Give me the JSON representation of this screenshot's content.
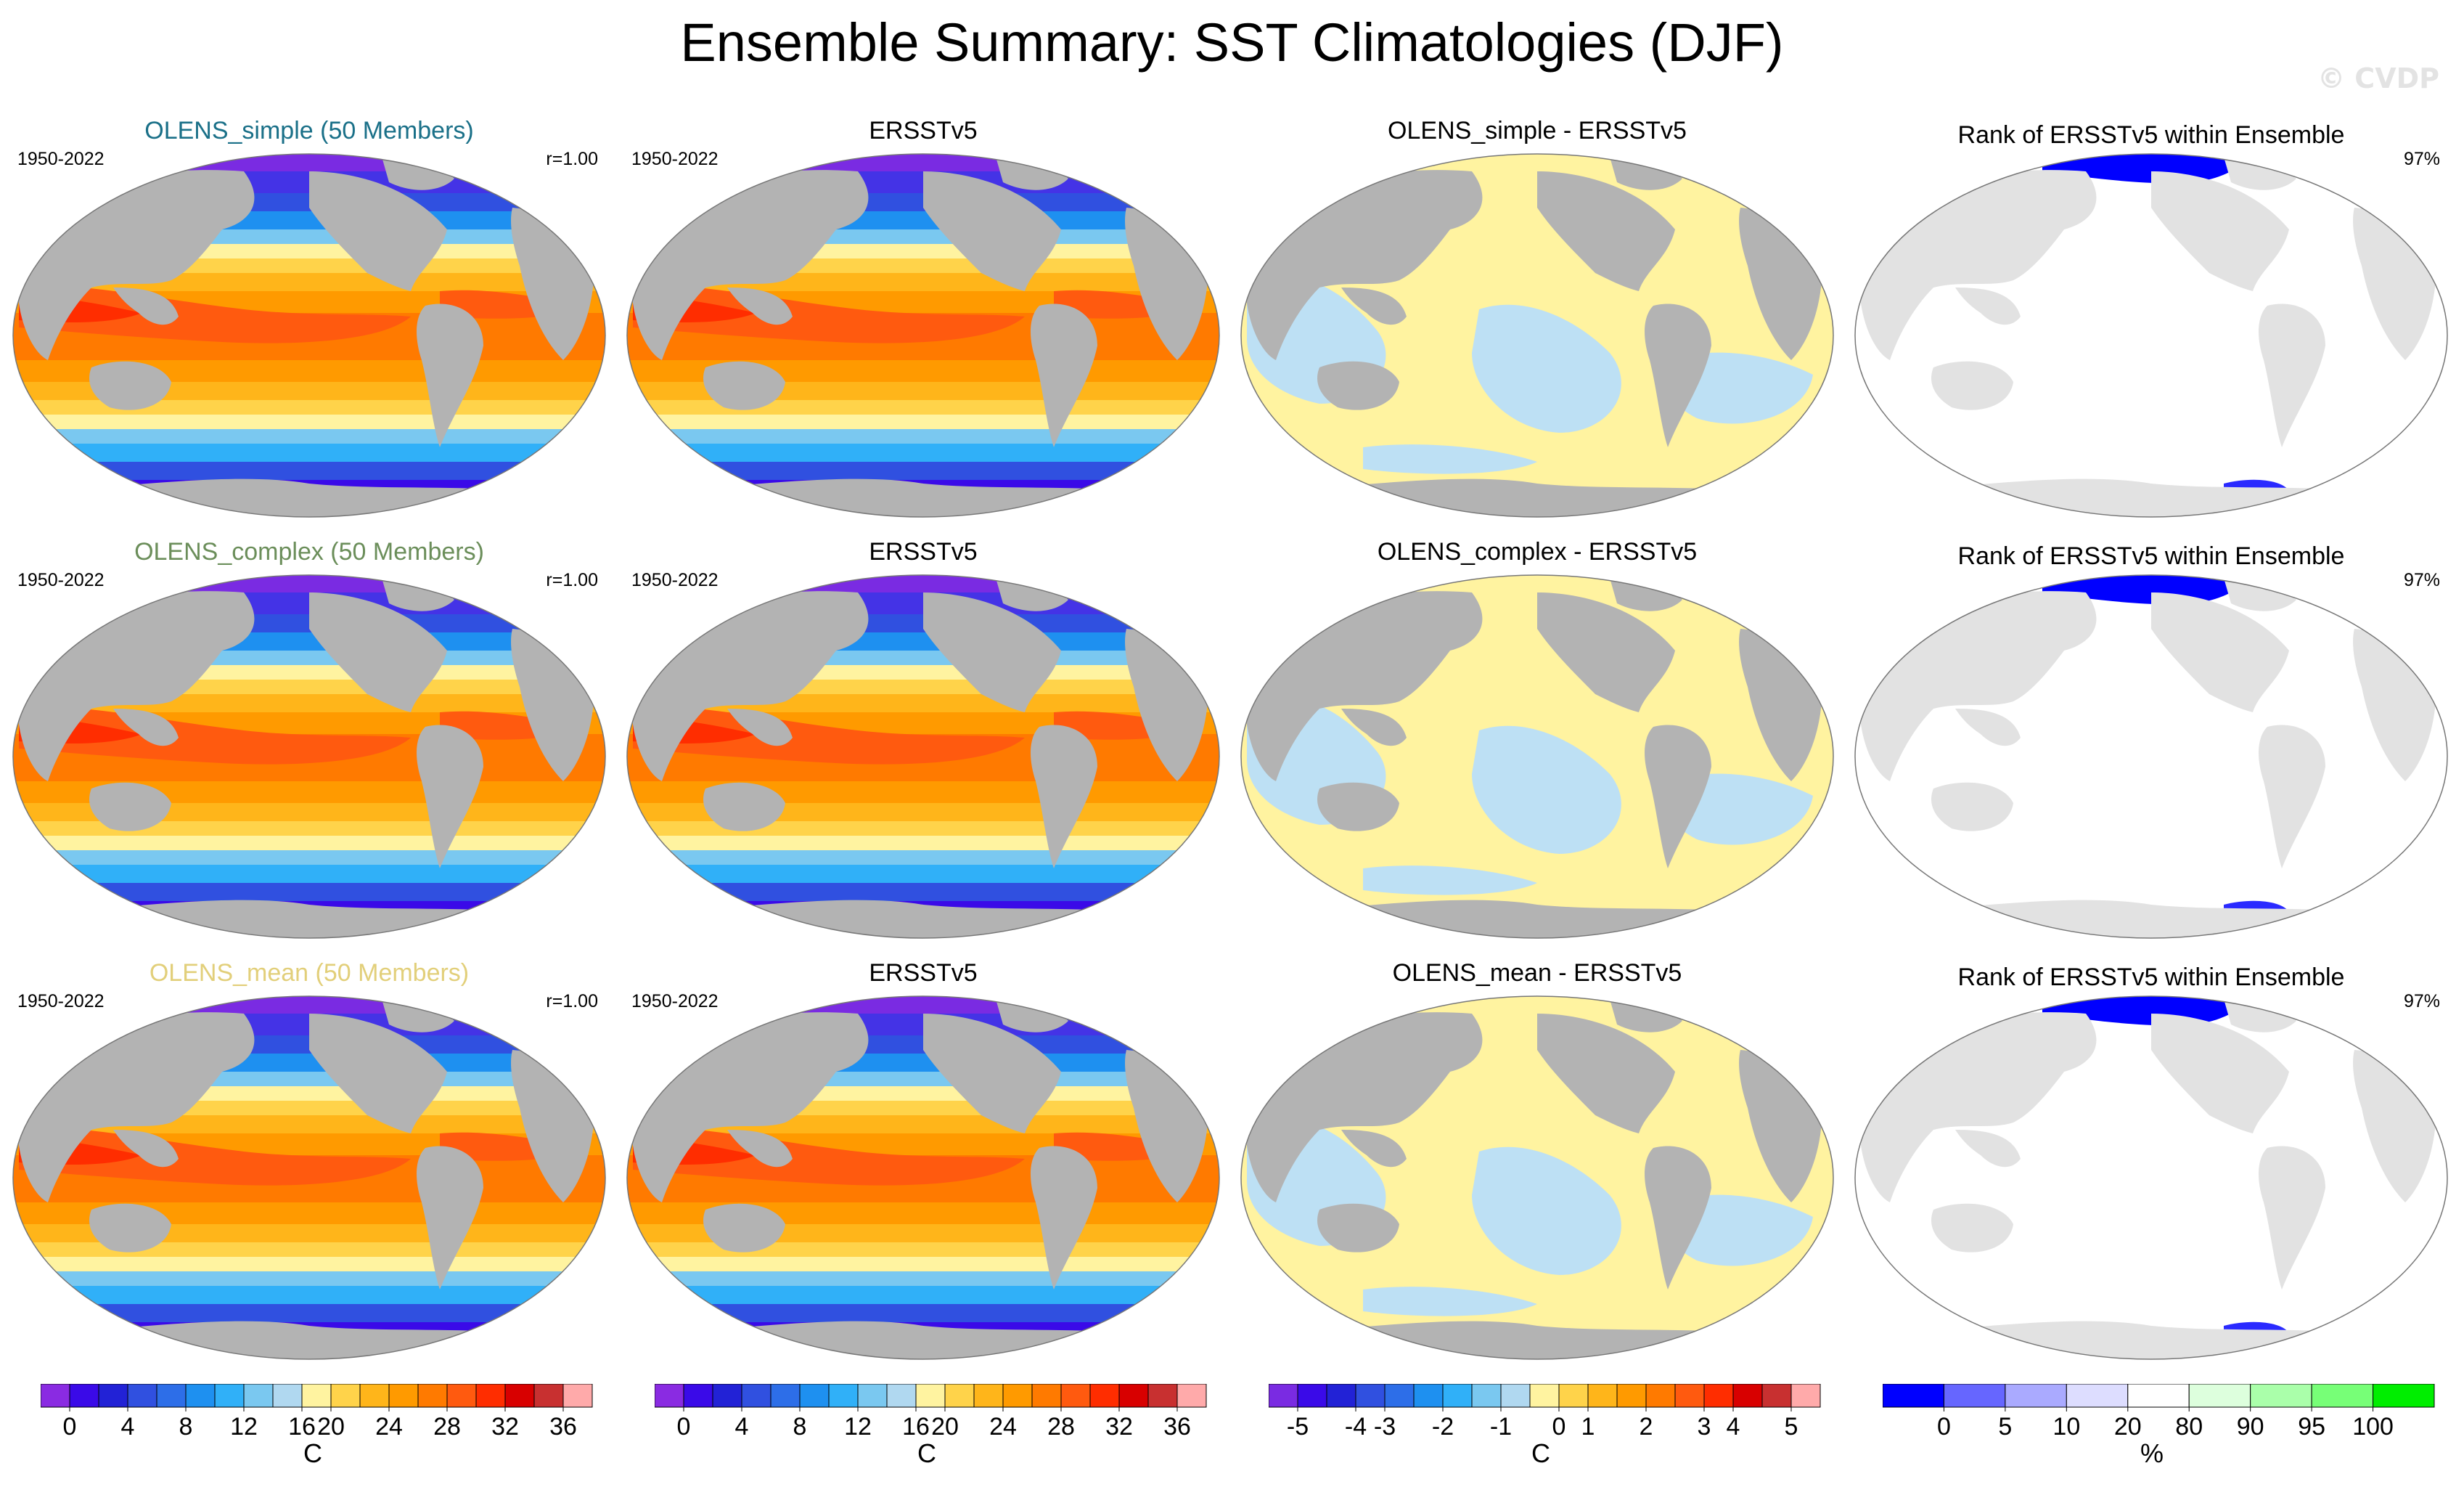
{
  "figure": {
    "title": "Ensemble Summary: SST Climatologies (DJF)",
    "watermark": "© CVDP"
  },
  "rows": [
    {
      "model": {
        "title": "OLENS_simple (50 Members)",
        "title_color": "#1a7088",
        "period": "1950-2022",
        "corr": "r=1.00"
      },
      "obs": {
        "title": "ERSSTv5",
        "period": "1950-2022"
      },
      "diff": {
        "title": "OLENS_simple - ERSSTv5"
      },
      "rank": {
        "title": "Rank of ERSSTv5 within Ensemble",
        "pct": "97%"
      }
    },
    {
      "model": {
        "title": "OLENS_complex (50 Members)",
        "title_color": "#6b8e5a",
        "period": "1950-2022",
        "corr": "r=1.00"
      },
      "obs": {
        "title": "ERSSTv5",
        "period": "1950-2022"
      },
      "diff": {
        "title": "OLENS_complex - ERSSTv5"
      },
      "rank": {
        "title": "Rank of ERSSTv5 within Ensemble",
        "pct": "97%"
      }
    },
    {
      "model": {
        "title": "OLENS_mean (50 Members)",
        "title_color": "#e2cf7a",
        "period": "1950-2022",
        "corr": "r=1.00"
      },
      "obs": {
        "title": "ERSSTv5",
        "period": "1950-2022"
      },
      "diff": {
        "title": "OLENS_mean - ERSSTv5"
      },
      "rank": {
        "title": "Rank of ERSSTv5 within Ensemble",
        "pct": "97%"
      }
    }
  ],
  "colorbars": {
    "sst": {
      "unit": "C",
      "colors": [
        "#8a2be2",
        "#3a0ae8",
        "#2222d6",
        "#3050e0",
        "#2d6ee8",
        "#1e90f0",
        "#30b0f8",
        "#7ac8f0",
        "#b0d8f0",
        "#fff3a0",
        "#ffd34a",
        "#ffb51a",
        "#ff9a00",
        "#ff7a00",
        "#ff5a0f",
        "#ff2d00",
        "#d80000",
        "#c83030",
        "#ffaaaa"
      ],
      "labels": [
        "0",
        "4",
        "8",
        "12",
        "16",
        "20",
        "24",
        "28",
        "32",
        "36"
      ]
    },
    "diff": {
      "unit": "C",
      "colors": [
        "#7a2be2",
        "#3a0ae8",
        "#2222d6",
        "#3050e0",
        "#2d6ee8",
        "#1e90f0",
        "#30b0f8",
        "#7ac8f0",
        "#b0d8f0",
        "#fff3a0",
        "#ffd34a",
        "#ffb51a",
        "#ff9a00",
        "#ff7a00",
        "#ff5a0f",
        "#ff2d00",
        "#d80000",
        "#c83030",
        "#ffaaaa"
      ],
      "labels": [
        "-5",
        "-4",
        "-3",
        "-2",
        "-1",
        "0",
        "1",
        "2",
        "3",
        "4",
        "5"
      ]
    },
    "rank": {
      "unit": "%",
      "colors": [
        "#0000ff",
        "#6666ff",
        "#aaaaff",
        "#ddddff",
        "#ffffff",
        "#ddffdd",
        "#aaffaa",
        "#77ff77",
        "#00ee00"
      ],
      "labels": [
        "0",
        "5",
        "10",
        "20",
        "80",
        "90",
        "95",
        "100"
      ]
    }
  }
}
